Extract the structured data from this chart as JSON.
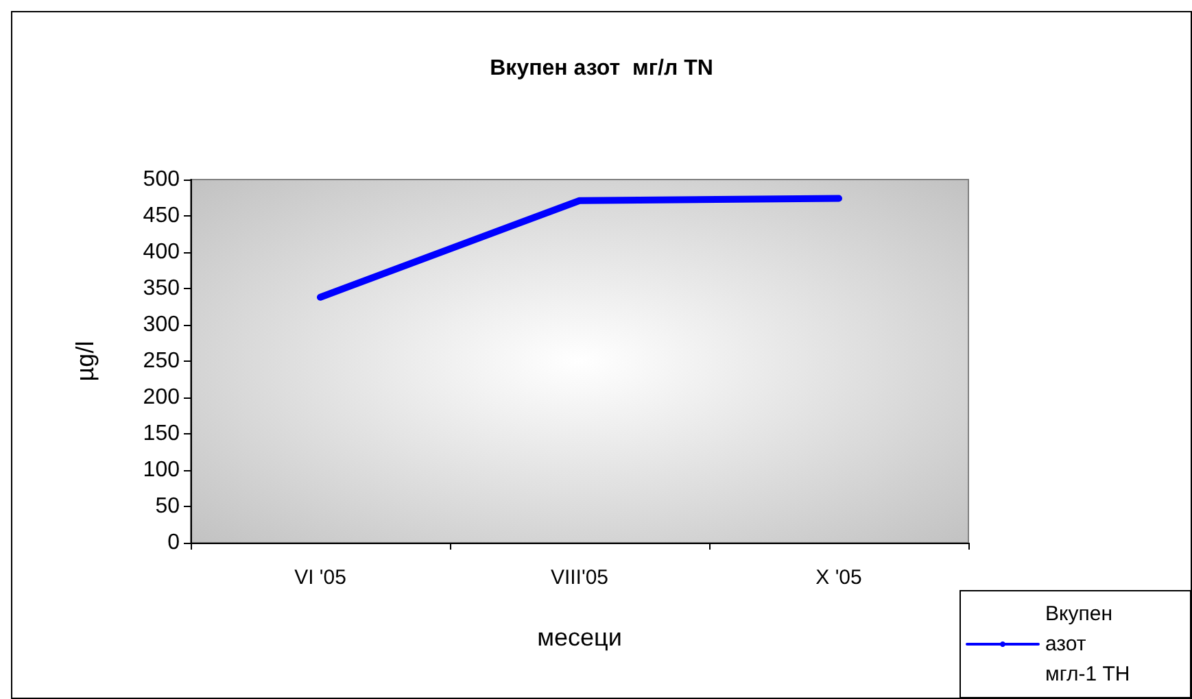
{
  "chart_data": {
    "type": "line",
    "title": "Вкупен азот  мг/л TN",
    "xlabel": "месеци",
    "ylabel": "µg/l",
    "categories": [
      "VI '05",
      "VIII'05",
      "X '05"
    ],
    "series": [
      {
        "name": "Вкупен азот  мгл-1 ТН",
        "color": "#0000ff",
        "values": [
          338,
          471,
          474
        ]
      }
    ],
    "ylim": [
      0,
      500
    ],
    "yticks": [
      0,
      50,
      100,
      150,
      200,
      250,
      300,
      350,
      400,
      450,
      500
    ],
    "grid": false,
    "legend": "bottom right",
    "marker": "none",
    "line_style": "solid"
  }
}
